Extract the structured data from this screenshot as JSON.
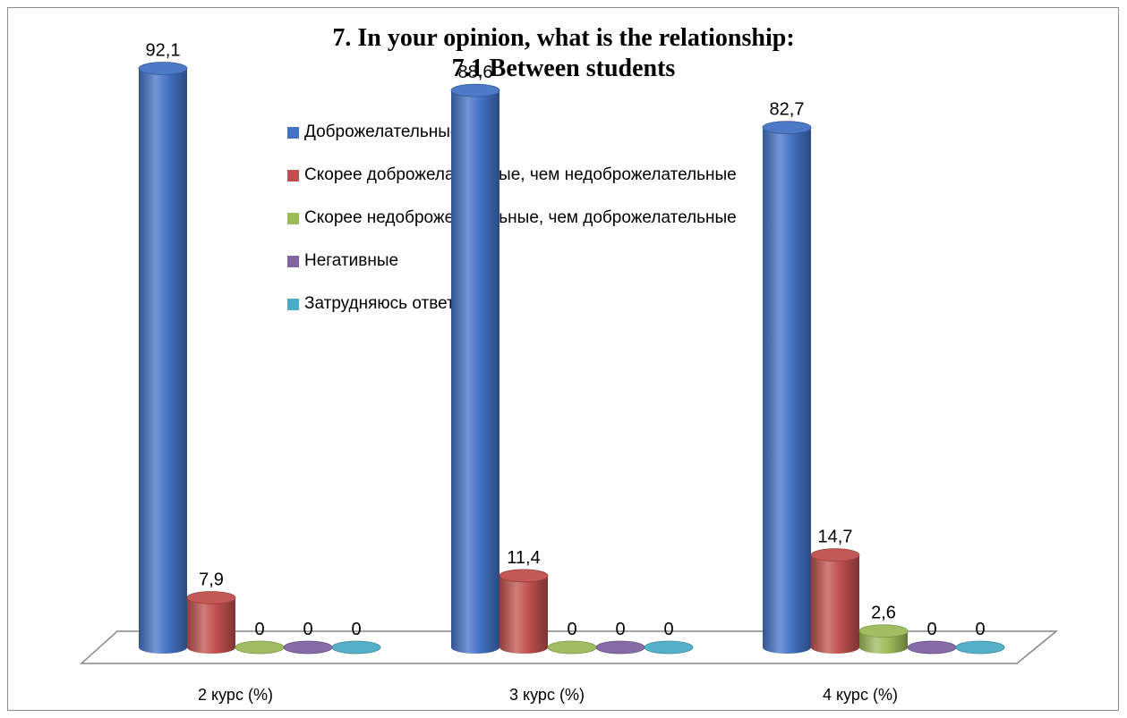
{
  "chart_data": {
    "type": "bar",
    "title": [
      "7. In your opinion, what is the relationship:",
      "7.1 Between students"
    ],
    "categories": [
      "2 курс (%)",
      "3 курс (%)",
      "4 курс (%)"
    ],
    "series": [
      {
        "name": "Доброжелательные",
        "color": "#4472c4",
        "values": [
          92.1,
          88.6,
          82.7
        ],
        "labels": [
          "92,1",
          "88,6",
          "82,7"
        ]
      },
      {
        "name": "Скорее доброжелательные, чем недоброжелательные",
        "color": "#c0504d",
        "values": [
          7.9,
          11.4,
          14.7
        ],
        "labels": [
          "7,9",
          "11,4",
          "14,7"
        ]
      },
      {
        "name": "Скорее недоброжелательные, чем доброжелательные",
        "color": "#9bbb59",
        "values": [
          0,
          0,
          2.6
        ],
        "labels": [
          "0",
          "0",
          "2,6"
        ]
      },
      {
        "name": "Негативные",
        "color": "#8064a2",
        "values": [
          0,
          0,
          0
        ],
        "labels": [
          "0",
          "0",
          "0"
        ]
      },
      {
        "name": "Затрудняюсь ответить",
        "color": "#4bacc6",
        "values": [
          0,
          0,
          0
        ],
        "labels": [
          "0",
          "0",
          "0"
        ]
      }
    ],
    "ylim": [
      0,
      100
    ],
    "legend": "top",
    "grid": false
  }
}
